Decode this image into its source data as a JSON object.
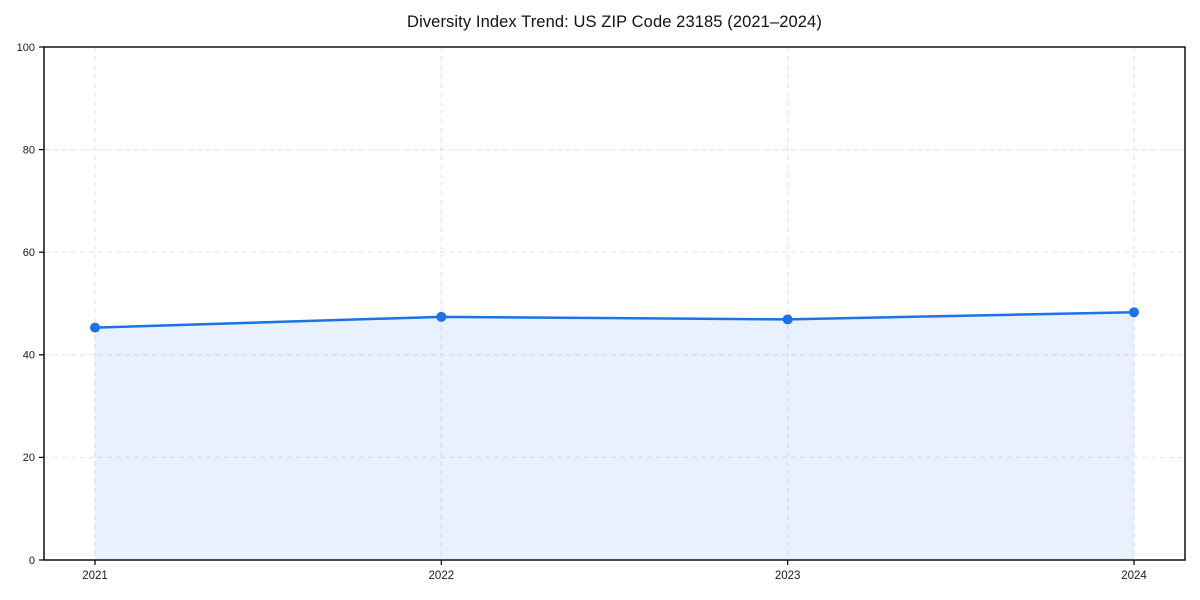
{
  "chart_data": {
    "type": "area",
    "title": "Diversity Index Trend: US ZIP Code 23185 (2021–2024)",
    "categories": [
      "2021",
      "2022",
      "2023",
      "2024"
    ],
    "series": [
      {
        "name": "Diversity Index",
        "values": [
          45.3,
          47.4,
          46.9,
          48.3
        ]
      }
    ],
    "xlabel": "",
    "ylabel": "",
    "ylim": [
      0,
      100
    ],
    "yticks": [
      0,
      20,
      40,
      60,
      80,
      100
    ],
    "grid": "on",
    "grid_style": "dashed",
    "legend": "none",
    "marker": "circle",
    "colors": {
      "line": "#1a73e8",
      "marker": "#1a73e8",
      "fill": "rgba(26,115,232,0.10)",
      "grid": "#e2e2e2",
      "frame": "#000000",
      "tick_text": "#1a1a1a",
      "background": "#ffffff"
    }
  }
}
